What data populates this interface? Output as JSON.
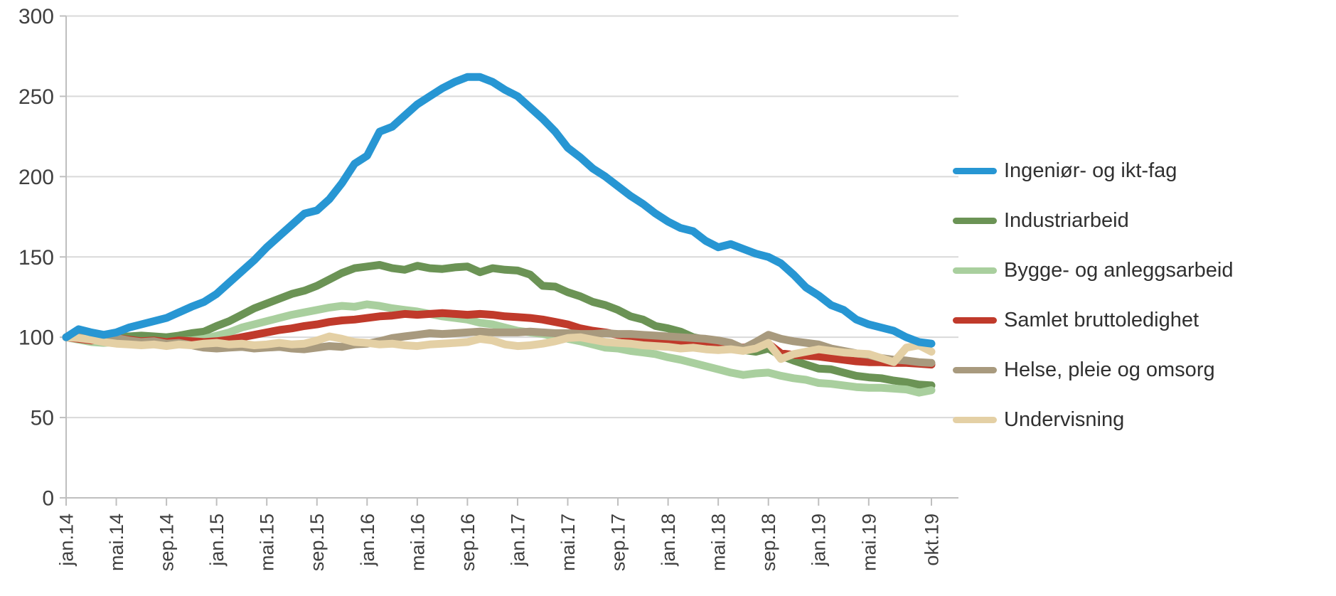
{
  "figure": {
    "background": "#FFFFFF",
    "title": ""
  },
  "chart_data": {
    "type": "line",
    "title": "",
    "xlabel": "",
    "ylabel": "",
    "x_unit": "month (jan.14 - okt.19)",
    "n_points": 70,
    "x_tick_labels": [
      "jan.14",
      "mai.14",
      "sep.14",
      "jan.15",
      "mai.15",
      "sep.15",
      "jan.16",
      "mai.16",
      "sep.16",
      "jan.17",
      "mai.17",
      "sep.17",
      "jan.18",
      "mai.18",
      "sep.18",
      "jan.19",
      "mai.19",
      "okt.19"
    ],
    "x_tick_indices": [
      0,
      4,
      8,
      12,
      16,
      20,
      24,
      28,
      32,
      36,
      40,
      44,
      48,
      52,
      56,
      60,
      64,
      69
    ],
    "ylim": [
      0,
      300
    ],
    "y_ticks": [
      0,
      50,
      100,
      150,
      200,
      250,
      300
    ],
    "grid": "horizontal",
    "grid_color": "#D9D9D9",
    "axis_color": "#BFBFBF",
    "label_color": "#3F3F3F",
    "legend_position": "right",
    "draw_order": [
      1,
      2,
      3,
      4,
      5,
      0
    ],
    "series": [
      {
        "name": "Ingeniør- og ikt-fag",
        "color": "#2796D3",
        "values": [
          100,
          105,
          103,
          101.5,
          103,
          106,
          108,
          110,
          112,
          115.5,
          119,
          122,
          127,
          134,
          141,
          148,
          156,
          163,
          170,
          177,
          179,
          186,
          196,
          208,
          213,
          228,
          231,
          238,
          245,
          250,
          255,
          259,
          262,
          262,
          259,
          254,
          250,
          243,
          236,
          228,
          218,
          212,
          205,
          200,
          194,
          188,
          183,
          177,
          172,
          168,
          166,
          160,
          156,
          158,
          155,
          152,
          150,
          146,
          139,
          131,
          126,
          120,
          117,
          111,
          108,
          106,
          104,
          100,
          97,
          96
        ]
      },
      {
        "name": "Industriarbeid",
        "color": "#6B9355",
        "values": [
          100,
          101,
          100.5,
          99.5,
          100,
          100.5,
          101,
          100.5,
          100,
          101,
          102.5,
          103.5,
          107,
          110,
          114,
          118,
          121,
          124,
          127,
          129,
          132,
          136,
          140,
          143,
          144,
          145,
          143,
          142,
          144.5,
          143,
          142.5,
          143.5,
          144,
          140.5,
          143,
          142,
          141.5,
          139,
          132,
          131.5,
          128,
          125.5,
          122,
          120,
          117,
          113,
          111,
          107,
          105.5,
          103.5,
          100,
          98.5,
          97.5,
          94,
          92,
          91,
          93,
          88.5,
          85.5,
          83,
          80.5,
          80,
          78,
          76,
          75,
          74.5,
          73,
          72,
          70.5,
          70
        ]
      },
      {
        "name": "Bygge- og anleggsarbeid",
        "color": "#A9CF9E",
        "values": [
          100,
          98.5,
          97,
          96.5,
          97,
          96.5,
          97,
          97.5,
          97,
          97.5,
          98,
          99,
          101,
          103,
          106,
          108,
          110,
          112,
          114,
          115.5,
          117,
          118.5,
          119.5,
          119,
          120.5,
          119.5,
          118,
          117,
          116,
          114.5,
          113,
          112,
          111,
          109,
          108,
          106,
          104,
          103,
          102,
          100.5,
          99,
          97.5,
          95.5,
          93.5,
          93,
          91.5,
          90.5,
          89.5,
          87.5,
          86,
          84,
          82,
          80,
          78,
          76.5,
          77.5,
          78,
          76,
          74.5,
          73.5,
          71.5,
          71,
          70,
          69,
          68.5,
          68.5,
          68,
          67.5,
          65.5,
          67
        ]
      },
      {
        "name": "Samlet bruttoledighet",
        "color": "#C03A2B",
        "values": [
          100,
          99,
          98,
          98.5,
          99.5,
          98.5,
          97.5,
          98,
          97,
          98,
          97.5,
          97,
          97.5,
          98.5,
          100,
          101.5,
          103,
          104.5,
          105.5,
          107,
          108,
          109.5,
          110.5,
          111,
          112,
          113,
          113.5,
          114.5,
          114,
          114.5,
          115,
          114.5,
          114,
          114.5,
          114,
          113,
          112.5,
          112,
          111,
          109.5,
          108,
          105.5,
          104,
          103,
          101.5,
          100.5,
          99.5,
          98.5,
          97.5,
          96.5,
          95.5,
          95,
          94.5,
          94.5,
          93.5,
          95,
          96,
          90,
          89,
          88.5,
          88,
          87,
          86,
          85,
          84.5,
          84.5,
          84,
          84,
          83.5,
          83
        ]
      },
      {
        "name": "Helse, pleie og omsorg",
        "color": "#A89A7E",
        "values": [
          100,
          101.5,
          100.5,
          99,
          99.5,
          98,
          97,
          97.5,
          96,
          96.5,
          95,
          93.5,
          93,
          93.5,
          94,
          93,
          93.5,
          94,
          93,
          92.5,
          93.5,
          94.5,
          94,
          95.5,
          96,
          97.5,
          99.5,
          100.5,
          101.5,
          102.5,
          102,
          102.5,
          103,
          103.5,
          103,
          103,
          103,
          103.5,
          103,
          102.5,
          102.5,
          102,
          102,
          102.5,
          102,
          102,
          101.5,
          101,
          100.5,
          100,
          99.5,
          99,
          98,
          96.5,
          93,
          97,
          101.5,
          99,
          97.5,
          96.5,
          95.5,
          93,
          91.5,
          90,
          89,
          87,
          86,
          85.5,
          84.5,
          84
        ]
      },
      {
        "name": "Undervisning",
        "color": "#E4D0A5",
        "values": [
          100,
          99.5,
          98.5,
          97,
          96,
          95.5,
          95,
          95.5,
          94.5,
          95.5,
          95,
          96,
          96.5,
          95.5,
          96,
          95,
          95.5,
          96.5,
          95.5,
          96,
          98,
          100.5,
          99,
          97,
          96.5,
          95.5,
          96,
          95,
          94.5,
          95.5,
          96,
          96.5,
          97,
          99,
          98,
          95.5,
          94.5,
          95,
          96,
          97.5,
          99.5,
          100,
          98.5,
          97,
          96.5,
          96,
          95,
          94.5,
          94,
          93,
          93.5,
          92.5,
          92,
          92.5,
          91.5,
          93,
          96.5,
          86.5,
          89.5,
          91,
          92.5,
          91.5,
          90.5,
          90,
          89.5,
          87,
          84.5,
          93.5,
          95,
          91
        ]
      }
    ]
  },
  "legend": {
    "items": [
      {
        "label": "Ingeniør- og ikt-fag"
      },
      {
        "label": "Industriarbeid"
      },
      {
        "label": "Bygge- og anleggsarbeid"
      },
      {
        "label": "Samlet bruttoledighet"
      },
      {
        "label": "Helse, pleie og omsorg"
      },
      {
        "label": "Undervisning"
      }
    ]
  }
}
